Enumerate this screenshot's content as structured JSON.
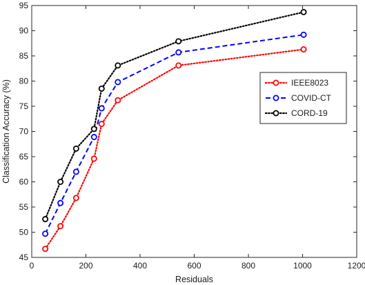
{
  "chart_data": {
    "type": "line",
    "title": "",
    "xlabel": "Residuals",
    "ylabel": "Classification Accuracy (%)",
    "xlim": [
      0,
      1200
    ],
    "ylim": [
      45,
      95
    ],
    "xticks": [
      0,
      200,
      400,
      600,
      800,
      1000,
      1200
    ],
    "yticks": [
      45,
      50,
      55,
      60,
      65,
      70,
      75,
      80,
      85,
      90,
      95
    ],
    "grid": false,
    "legend_position": "right",
    "series": [
      {
        "name": "IEEE8023",
        "color": "#ff0000",
        "line_style": "dotted",
        "marker": "circle",
        "x": [
          50,
          106,
          164,
          230,
          258,
          318,
          542,
          1004
        ],
        "y": [
          46.7,
          51.2,
          56.8,
          64.6,
          71.5,
          76.2,
          83.1,
          86.3
        ]
      },
      {
        "name": "COVID-CT",
        "color": "#0000ff",
        "line_style": "dashed",
        "marker": "circle",
        "x": [
          50,
          106,
          164,
          230,
          258,
          318,
          542,
          1004
        ],
        "y": [
          49.7,
          55.8,
          62.0,
          68.9,
          74.6,
          79.8,
          85.7,
          89.2
        ]
      },
      {
        "name": "CORD-19",
        "color": "#000000",
        "line_style": "dotted",
        "marker": "circle",
        "x": [
          50,
          106,
          164,
          230,
          258,
          318,
          542,
          1004
        ],
        "y": [
          52.6,
          60.0,
          66.6,
          70.5,
          78.5,
          83.1,
          87.9,
          93.7
        ]
      }
    ]
  }
}
